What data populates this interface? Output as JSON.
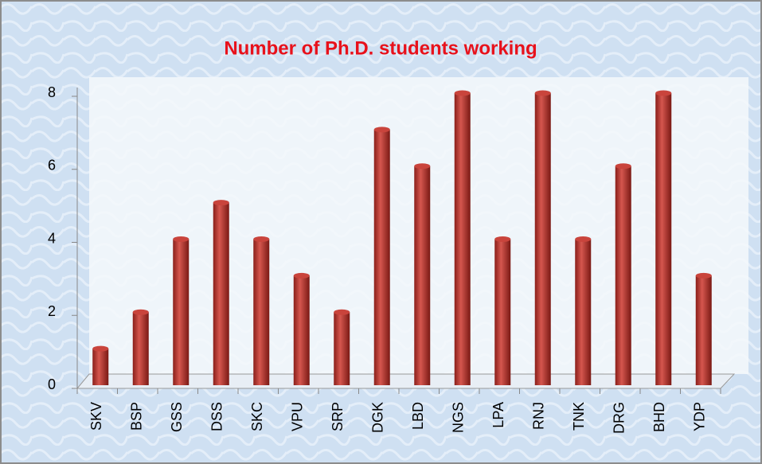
{
  "chart_data": {
    "type": "bar",
    "title": "Number of Ph.D. students working",
    "categories": [
      "SKV",
      "BSP",
      "GSS",
      "DSS",
      "SKC",
      "VPU",
      "SRP",
      "DGK",
      "LBD",
      "NGS",
      "LPA",
      "RNJ",
      "TNK",
      "DRG",
      "BHD",
      "YDP"
    ],
    "values": [
      1,
      2,
      4,
      5,
      4,
      3,
      2,
      7,
      6,
      8,
      4,
      8,
      4,
      6,
      8,
      3
    ],
    "color": "#b8302a",
    "ylim": [
      0,
      8
    ],
    "yticks": [
      0,
      2,
      4,
      6,
      8
    ],
    "grid": false
  }
}
